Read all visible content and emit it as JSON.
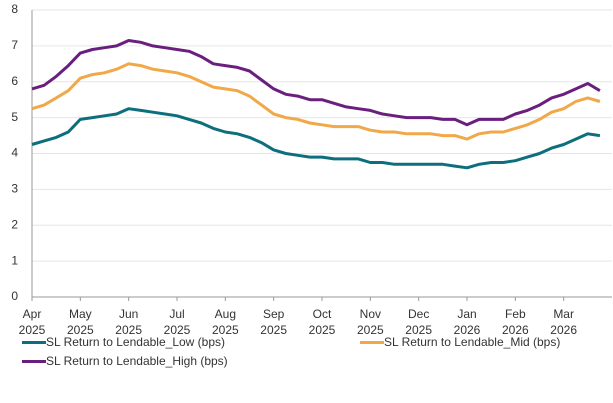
{
  "chart_data": {
    "type": "line",
    "categories": [
      "Apr 2025",
      null,
      null,
      null,
      "May 2025",
      null,
      null,
      null,
      "Jun 2025",
      null,
      null,
      null,
      "Jul 2025",
      null,
      null,
      null,
      "Aug 2025",
      null,
      null,
      null,
      "Sep 2025",
      null,
      null,
      null,
      "Oct 2025",
      null,
      null,
      null,
      "Nov 2025",
      null,
      null,
      null,
      "Dec 2025",
      null,
      null,
      null,
      "Jan 2026",
      null,
      null,
      null,
      "Feb 2026",
      null,
      null,
      null,
      "Mar 2026",
      null,
      null,
      null
    ],
    "series": [
      {
        "name": "SL Return to Lendable_Low (bps)",
        "color": "#0d6e7d",
        "values": [
          4.25,
          4.35,
          4.45,
          4.6,
          4.95,
          5.0,
          5.05,
          5.1,
          5.25,
          5.2,
          5.15,
          5.1,
          5.05,
          4.95,
          4.85,
          4.7,
          4.6,
          4.55,
          4.45,
          4.3,
          4.1,
          4.0,
          3.95,
          3.9,
          3.9,
          3.85,
          3.85,
          3.85,
          3.75,
          3.75,
          3.7,
          3.7,
          3.7,
          3.7,
          3.7,
          3.65,
          3.6,
          3.7,
          3.75,
          3.75,
          3.8,
          3.9,
          4.0,
          4.15,
          4.25,
          4.4,
          4.55,
          4.5
        ]
      },
      {
        "name": "SL Return to Lendable_Mid (bps)",
        "color": "#f0a848",
        "values": [
          5.25,
          5.35,
          5.55,
          5.75,
          6.1,
          6.2,
          6.25,
          6.35,
          6.5,
          6.45,
          6.35,
          6.3,
          6.25,
          6.15,
          6.0,
          5.85,
          5.8,
          5.75,
          5.6,
          5.35,
          5.1,
          5.0,
          4.95,
          4.85,
          4.8,
          4.75,
          4.75,
          4.75,
          4.65,
          4.6,
          4.6,
          4.55,
          4.55,
          4.55,
          4.5,
          4.5,
          4.4,
          4.55,
          4.6,
          4.6,
          4.7,
          4.8,
          4.95,
          5.15,
          5.25,
          5.45,
          5.55,
          5.45
        ]
      },
      {
        "name": "SL Return to Lendable_High (bps)",
        "color": "#6a1f7f",
        "values": [
          5.8,
          5.9,
          6.15,
          6.45,
          6.8,
          6.9,
          6.95,
          7.0,
          7.15,
          7.1,
          7.0,
          6.95,
          6.9,
          6.85,
          6.7,
          6.5,
          6.45,
          6.4,
          6.3,
          6.05,
          5.8,
          5.65,
          5.6,
          5.5,
          5.5,
          5.4,
          5.3,
          5.25,
          5.2,
          5.1,
          5.05,
          5.0,
          5.0,
          5.0,
          4.95,
          4.95,
          4.8,
          4.95,
          4.95,
          4.95,
          5.1,
          5.2,
          5.35,
          5.55,
          5.65,
          5.8,
          5.95,
          5.75
        ]
      }
    ],
    "ylim": [
      0,
      8
    ],
    "yticks": [
      0,
      1,
      2,
      3,
      4,
      5,
      6,
      7,
      8
    ],
    "grid": true
  }
}
